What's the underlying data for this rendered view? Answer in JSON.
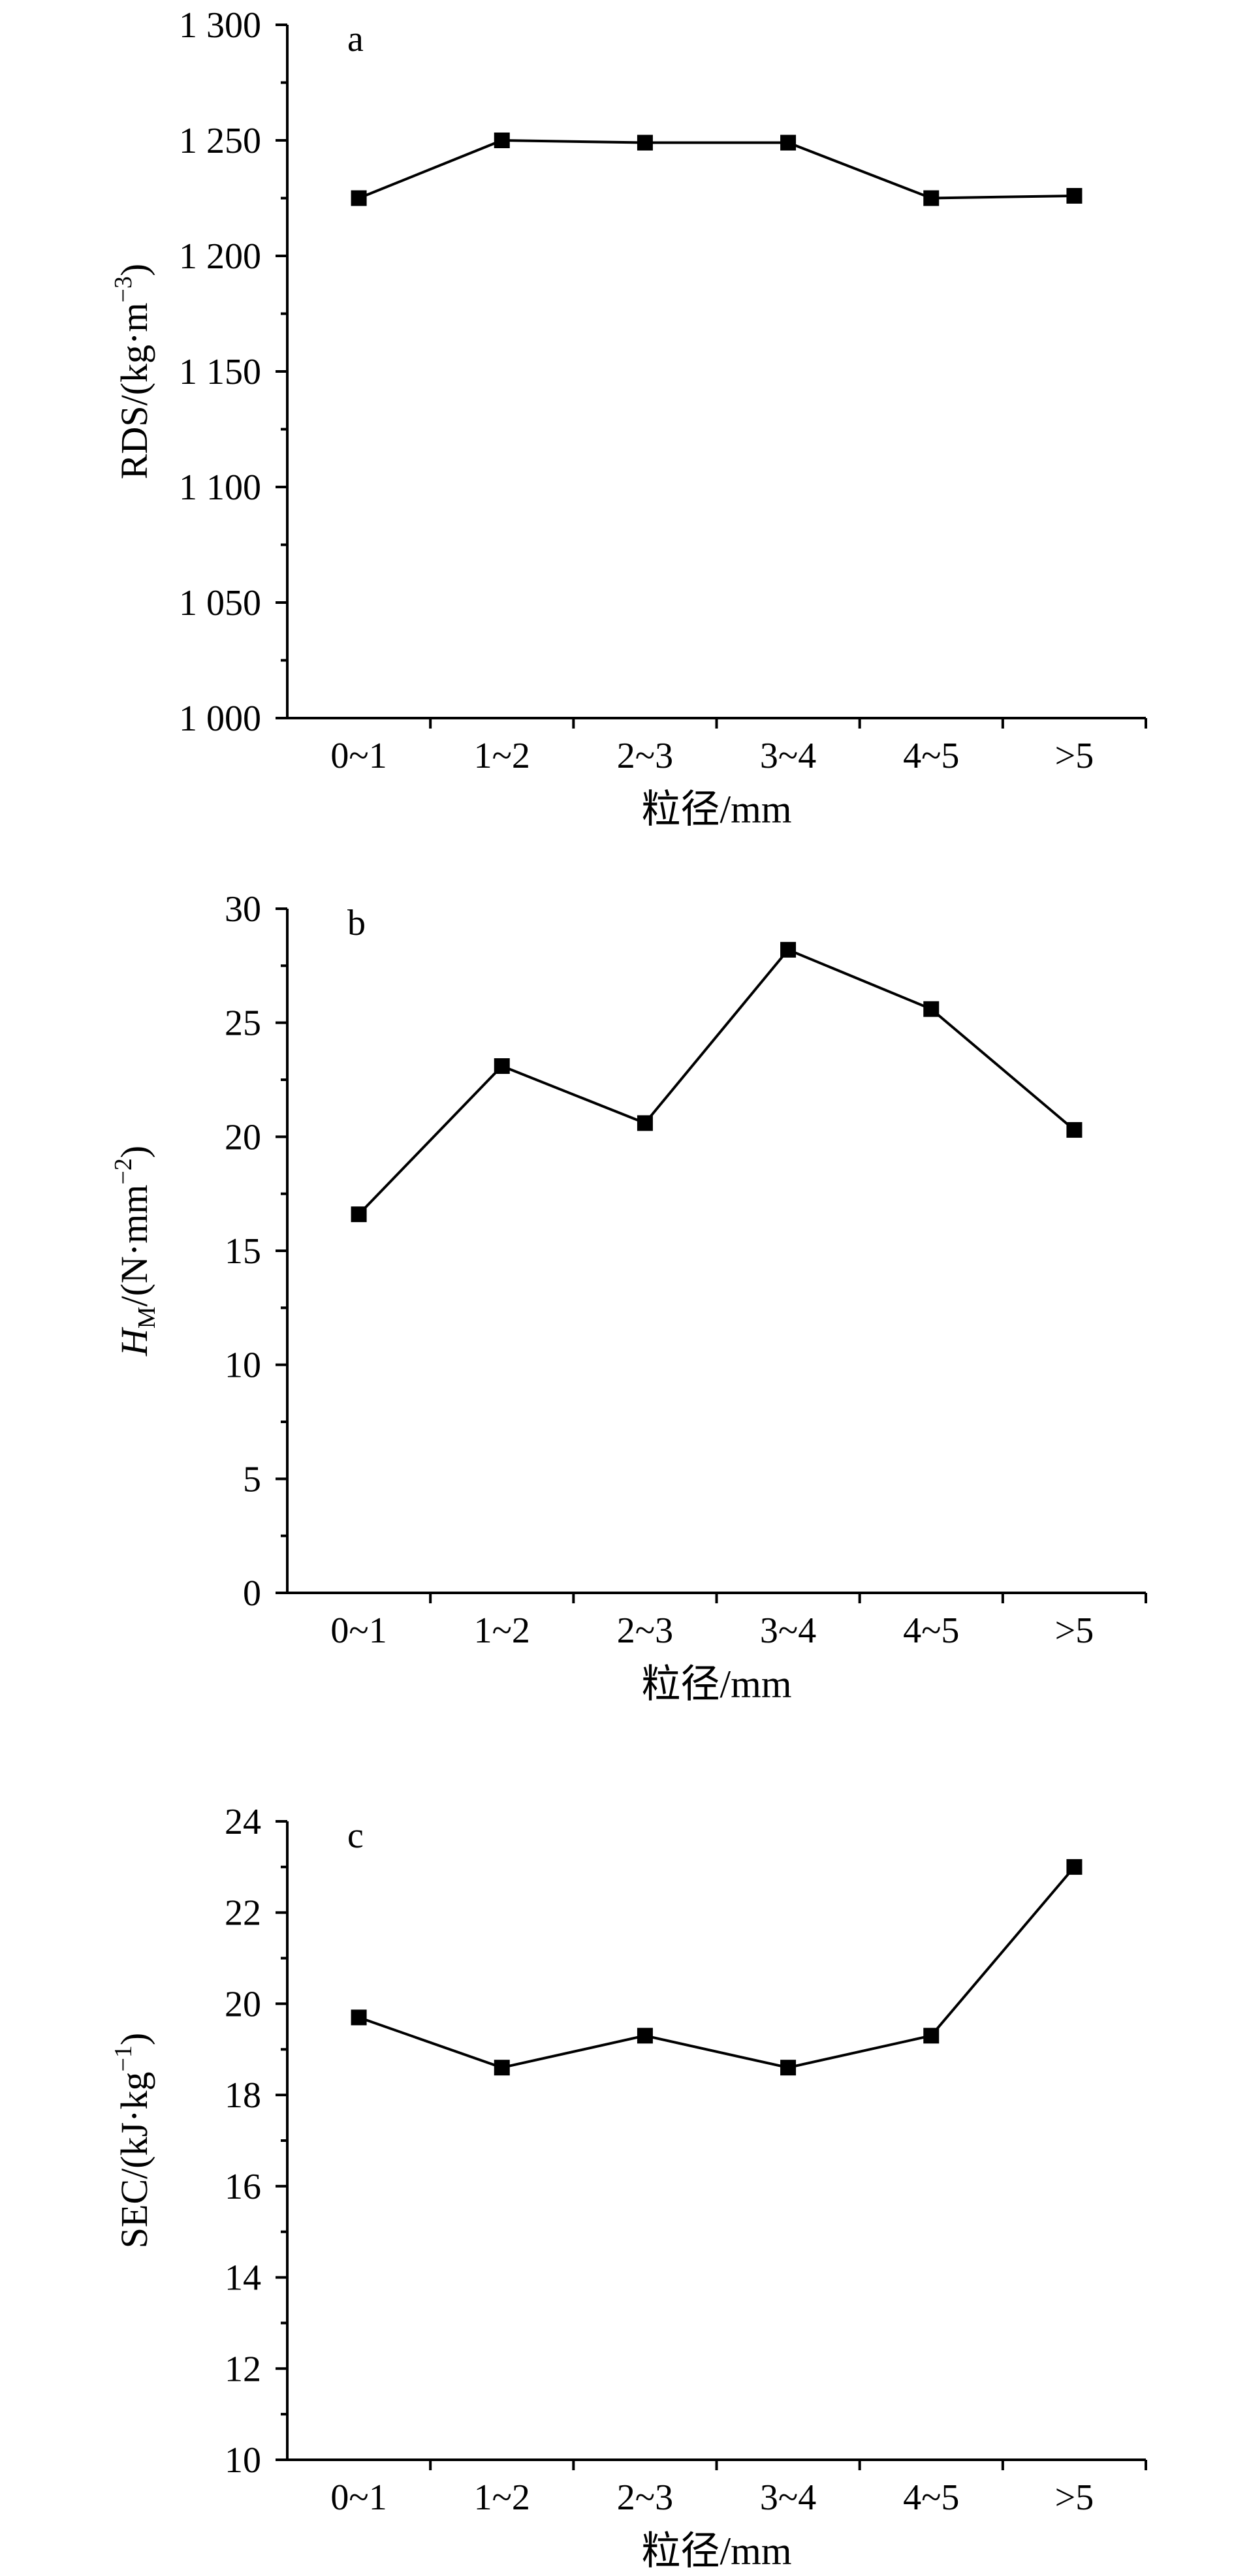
{
  "chart_data": [
    {
      "type": "line",
      "panel_label": "a",
      "categories": [
        "0~1",
        "1~2",
        "2~3",
        "3~4",
        "4~5",
        ">5"
      ],
      "values": [
        1225,
        1250,
        1249,
        1249,
        1225,
        1226
      ],
      "xlabel": "粒径/mm",
      "ylabel": {
        "main": "RDS/(kg·m",
        "sup": "−3",
        "tail": ")"
      },
      "ylim": [
        1000,
        1300
      ],
      "yticks": [
        1000,
        1050,
        1100,
        1150,
        1200,
        1250,
        1300
      ],
      "ytick_labels": [
        "1 000",
        "1 050",
        "1 100",
        "1 150",
        "1 200",
        "1 250",
        "1 300"
      ],
      "minor_ticks": true,
      "grid": false
    },
    {
      "type": "line",
      "panel_label": "b",
      "categories": [
        "0~1",
        "1~2",
        "2~3",
        "3~4",
        "4~5",
        ">5"
      ],
      "values": [
        16.6,
        23.1,
        20.6,
        28.2,
        25.6,
        20.3
      ],
      "xlabel": "粒径/mm",
      "ylabel": {
        "italic": "H",
        "sub": "M",
        "main": "/(N·mm",
        "sup": "−2",
        "tail": ")"
      },
      "ylim": [
        0,
        30
      ],
      "yticks": [
        0,
        5,
        10,
        15,
        20,
        25,
        30
      ],
      "ytick_labels": [
        "0",
        "5",
        "10",
        "15",
        "20",
        "25",
        "30"
      ],
      "minor_ticks": true,
      "grid": false
    },
    {
      "type": "line",
      "panel_label": "c",
      "categories": [
        "0~1",
        "1~2",
        "2~3",
        "3~4",
        "4~5",
        ">5"
      ],
      "values": [
        19.7,
        18.6,
        19.3,
        18.6,
        19.3,
        23.0
      ],
      "xlabel": "粒径/mm",
      "ylabel": {
        "main": "SEC/(kJ·kg",
        "sup": "−1",
        "tail": ")"
      },
      "ylim": [
        10,
        24
      ],
      "yticks": [
        10,
        12,
        14,
        16,
        18,
        20,
        22,
        24
      ],
      "ytick_labels": [
        "10",
        "12",
        "14",
        "16",
        "18",
        "20",
        "22",
        "24"
      ],
      "minor_ticks": true,
      "grid": false
    }
  ]
}
